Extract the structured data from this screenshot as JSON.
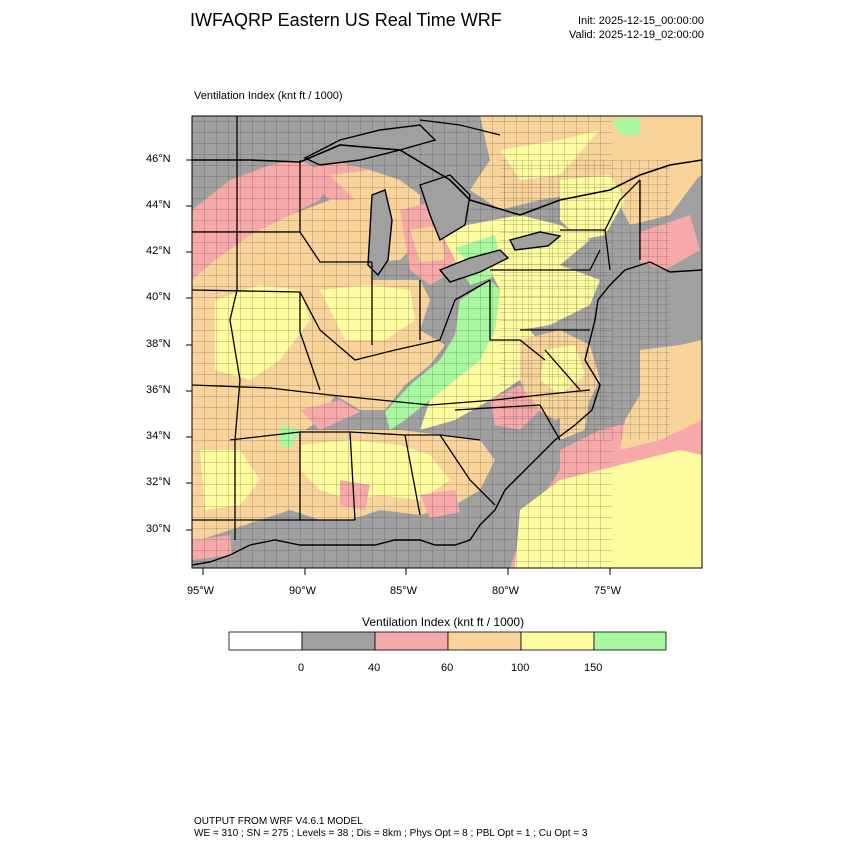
{
  "header": {
    "title": "IWFAQRP Eastern US Real Time WRF",
    "init": "Init: 2025-12-15_00:00:00",
    "valid": "Valid: 2025-12-19_02:00:00"
  },
  "map": {
    "subtitle": "Ventilation Index   (knt ft / 1000)",
    "lat_labels": [
      "46°N",
      "44°N",
      "42°N",
      "40°N",
      "38°N",
      "36°N",
      "34°N",
      "32°N",
      "30°N"
    ],
    "lon_labels": [
      "95°W",
      "90°W",
      "85°W",
      "80°W",
      "75°W"
    ],
    "colors": {
      "water_land_none": "#ffffff",
      "low": "#a0a0a0",
      "pink": "#f7a8a8",
      "orange": "#f8d49a",
      "yellow": "#fdfda0",
      "green": "#a8f8a0"
    }
  },
  "legend": {
    "title": "Ventilation Index  (knt ft / 1000)",
    "colors": [
      "#ffffff",
      "#a0a0a0",
      "#f7a8a8",
      "#f8d49a",
      "#fdfda0",
      "#a8f8a0"
    ],
    "ticks": [
      "0",
      "40",
      "60",
      "100",
      "150"
    ]
  },
  "footer": {
    "line1": "OUTPUT FROM WRF V4.6.1 MODEL",
    "line2": "WE = 310 ; SN = 275 ; Levels = 38 ; Dis = 8km ; Phys Opt = 8 ; PBL Opt = 1 ; Cu Opt = 3"
  }
}
